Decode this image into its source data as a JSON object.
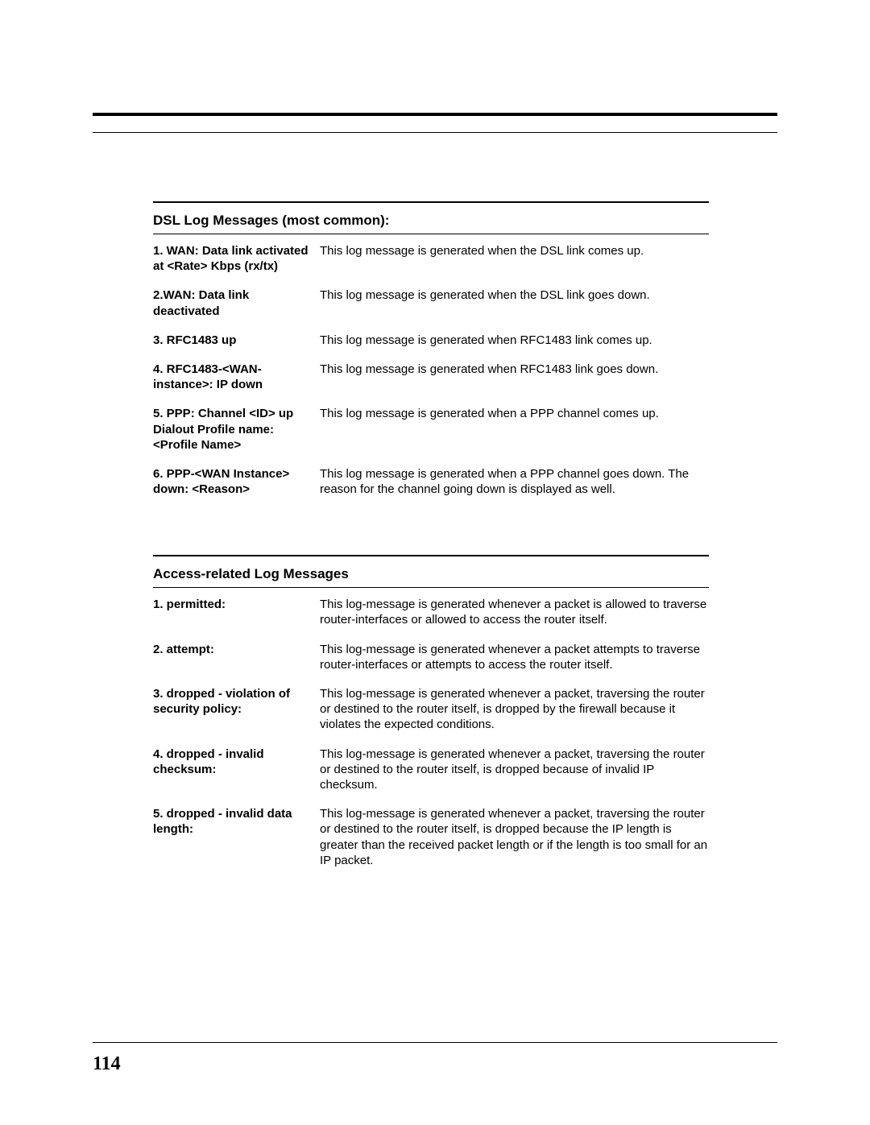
{
  "page_number": "114",
  "sections": [
    {
      "title": "DSL Log Messages (most common):",
      "rows": [
        {
          "term": "1. WAN: Data link activated at <Rate> Kbps (rx/tx)",
          "desc": "This log message is generated when the DSL link comes up."
        },
        {
          "term": "2.WAN: Data link deactivated",
          "desc": "This log message is generated when the DSL link goes down."
        },
        {
          "term": "3. RFC1483 up",
          "desc": "This log message is generated when RFC1483 link comes up."
        },
        {
          "term": "4. RFC1483-<WAN-instance>: IP down",
          "desc": "This log message is generated when RFC1483 link goes down."
        },
        {
          "term": "5. PPP: Channel <ID> up Dialout Profile name: <Profile Name>",
          "desc": "This log message is generated when a PPP channel comes up."
        },
        {
          "term": "6. PPP-<WAN Instance> down: <Reason>",
          "desc": "This log message is generated when a PPP channel goes down. The reason for the channel going down is displayed as well."
        }
      ]
    },
    {
      "title": "Access-related Log Messages",
      "rows": [
        {
          "term": "1. permitted:",
          "desc": "This log-message is generated whenever a packet is allowed to traverse router-interfaces or allowed to access the router itself."
        },
        {
          "term": "2. attempt:",
          "desc": "This log-message is generated whenever a packet attempts to traverse router-interfaces or attempts to access the router itself."
        },
        {
          "term": "3. dropped - violation of security policy:",
          "desc": "This log-message is generated whenever a packet, traversing the router or destined to the router itself, is dropped by the firewall because it violates the expected conditions."
        },
        {
          "term": "4. dropped - invalid checksum:",
          "desc": "This log-message is generated whenever a packet, traversing the router or destined to the router itself, is dropped because of invalid IP checksum."
        },
        {
          "term": "5. dropped - invalid data length:",
          "desc": "This log-message is generated whenever a packet, traversing the router or destined to the router itself, is dropped because the IP length is greater than the received packet length or if the length is too small for an IP packet."
        }
      ]
    }
  ]
}
